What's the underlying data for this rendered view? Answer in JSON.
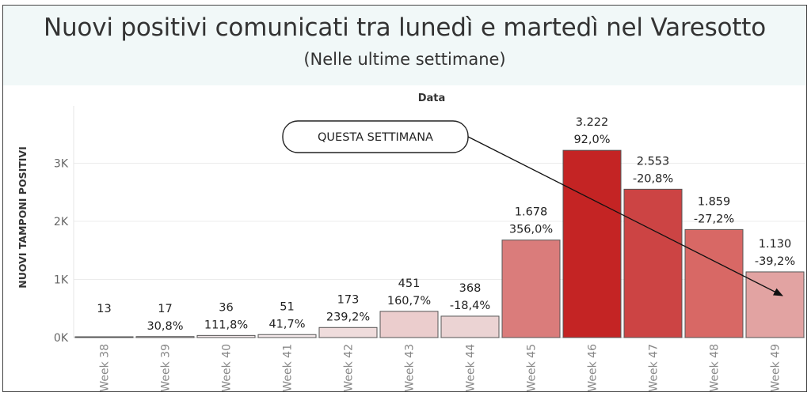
{
  "header": {
    "title": "Nuovi positivi comunicati tra lunedì e martedì nel Varesotto",
    "subtitle": "(Nelle ultime settimane)"
  },
  "chart_data": {
    "type": "bar",
    "title": "Nuovi positivi comunicati tra lunedì e martedì nel Varesotto",
    "subtitle": "(Nelle ultime settimane)",
    "xlabel": "Data",
    "ylabel": "NUOVI TAMPONI POSITIVI",
    "categories": [
      "Week 38",
      "Week 39",
      "Week 40",
      "Week 41",
      "Week 42",
      "Week 43",
      "Week 44",
      "Week 45",
      "Week 46",
      "Week 47",
      "Week 48",
      "Week 49"
    ],
    "values": [
      13,
      17,
      36,
      51,
      173,
      451,
      368,
      1678,
      3222,
      2553,
      1859,
      1130
    ],
    "value_labels": [
      "13",
      "17",
      "36",
      "51",
      "173",
      "451",
      "368",
      "1.678",
      "3.222",
      "2.553",
      "1.859",
      "1.130"
    ],
    "pct_change_labels": [
      "",
      "30,8%",
      "111,8%",
      "41,7%",
      "239,2%",
      "160,7%",
      "-18,4%",
      "356,0%",
      "92,0%",
      "-20,8%",
      "-27,2%",
      "-39,2%"
    ],
    "bar_colors": [
      "#f4e9eb",
      "#f4e9eb",
      "#f4e9eb",
      "#f4e9eb",
      "#efdcdc",
      "#ebcdcd",
      "#ebd3d3",
      "#da7c7b",
      "#c42424",
      "#cc4444",
      "#d86865",
      "#e2a3a2"
    ],
    "yticks": [
      0,
      1000,
      2000,
      3000
    ],
    "ytick_labels": [
      "0K",
      "1K",
      "2K",
      "3K"
    ],
    "ylim": [
      0,
      4000
    ],
    "grid": true,
    "annotation": {
      "text": "QUESTA SETTIMANA",
      "points_to": "Week 49"
    }
  }
}
